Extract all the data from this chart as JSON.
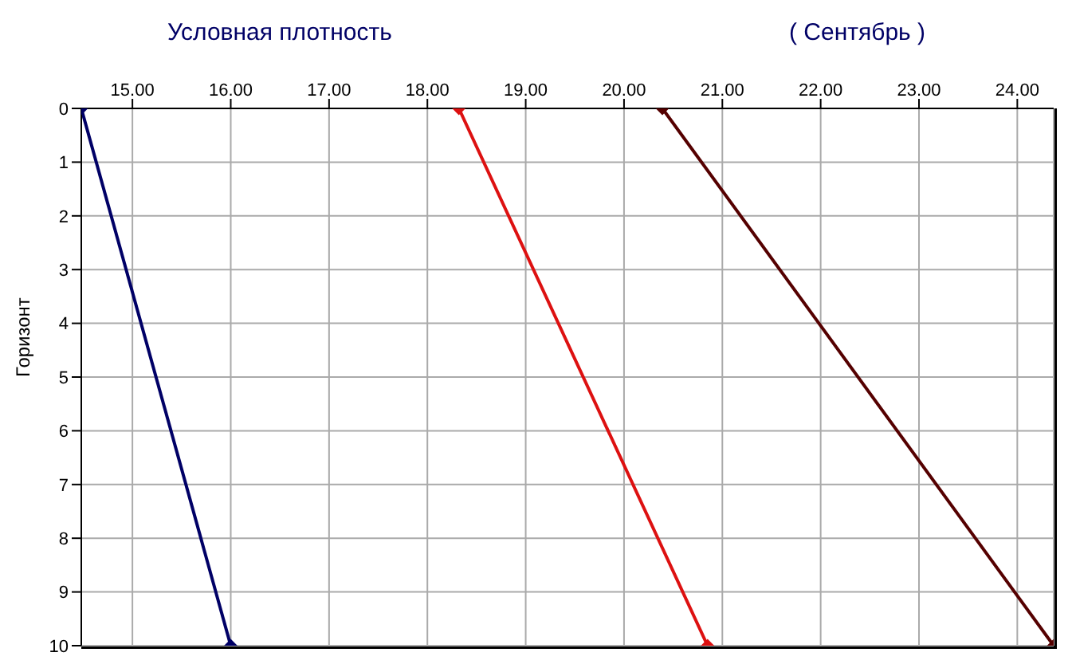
{
  "chart_data": {
    "type": "line",
    "title": "Условная плотность",
    "subtitle": "( Сентябрь )",
    "ylabel": "Горизонт",
    "series": [
      {
        "color": "#000066",
        "x": [
          14.48,
          16.0
        ],
        "values": [
          0,
          10
        ]
      },
      {
        "color": "#dd1111",
        "x": [
          18.32,
          20.85
        ],
        "values": [
          0,
          10
        ]
      },
      {
        "color": "#550000",
        "x": [
          20.39,
          24.37
        ],
        "values": [
          0,
          10
        ]
      }
    ],
    "xlim": [
      14.48,
      24.37
    ],
    "xticks": [
      {
        "value": 15,
        "label": "15.00"
      },
      {
        "value": 16,
        "label": "16.00"
      },
      {
        "value": 17,
        "label": "17.00"
      },
      {
        "value": 18,
        "label": "18.00"
      },
      {
        "value": 19,
        "label": "19.00"
      },
      {
        "value": 20,
        "label": "20.00"
      },
      {
        "value": 21,
        "label": "21.00"
      },
      {
        "value": 22,
        "label": "22.00"
      },
      {
        "value": 23,
        "label": "23.00"
      },
      {
        "value": 24,
        "label": "24.00"
      }
    ],
    "ylim": [
      10,
      0
    ],
    "yticks": [
      0,
      1,
      2,
      3,
      4,
      5,
      6,
      7,
      8,
      9,
      10
    ],
    "grid": true,
    "marker": "diamond",
    "line_style": "solid"
  }
}
